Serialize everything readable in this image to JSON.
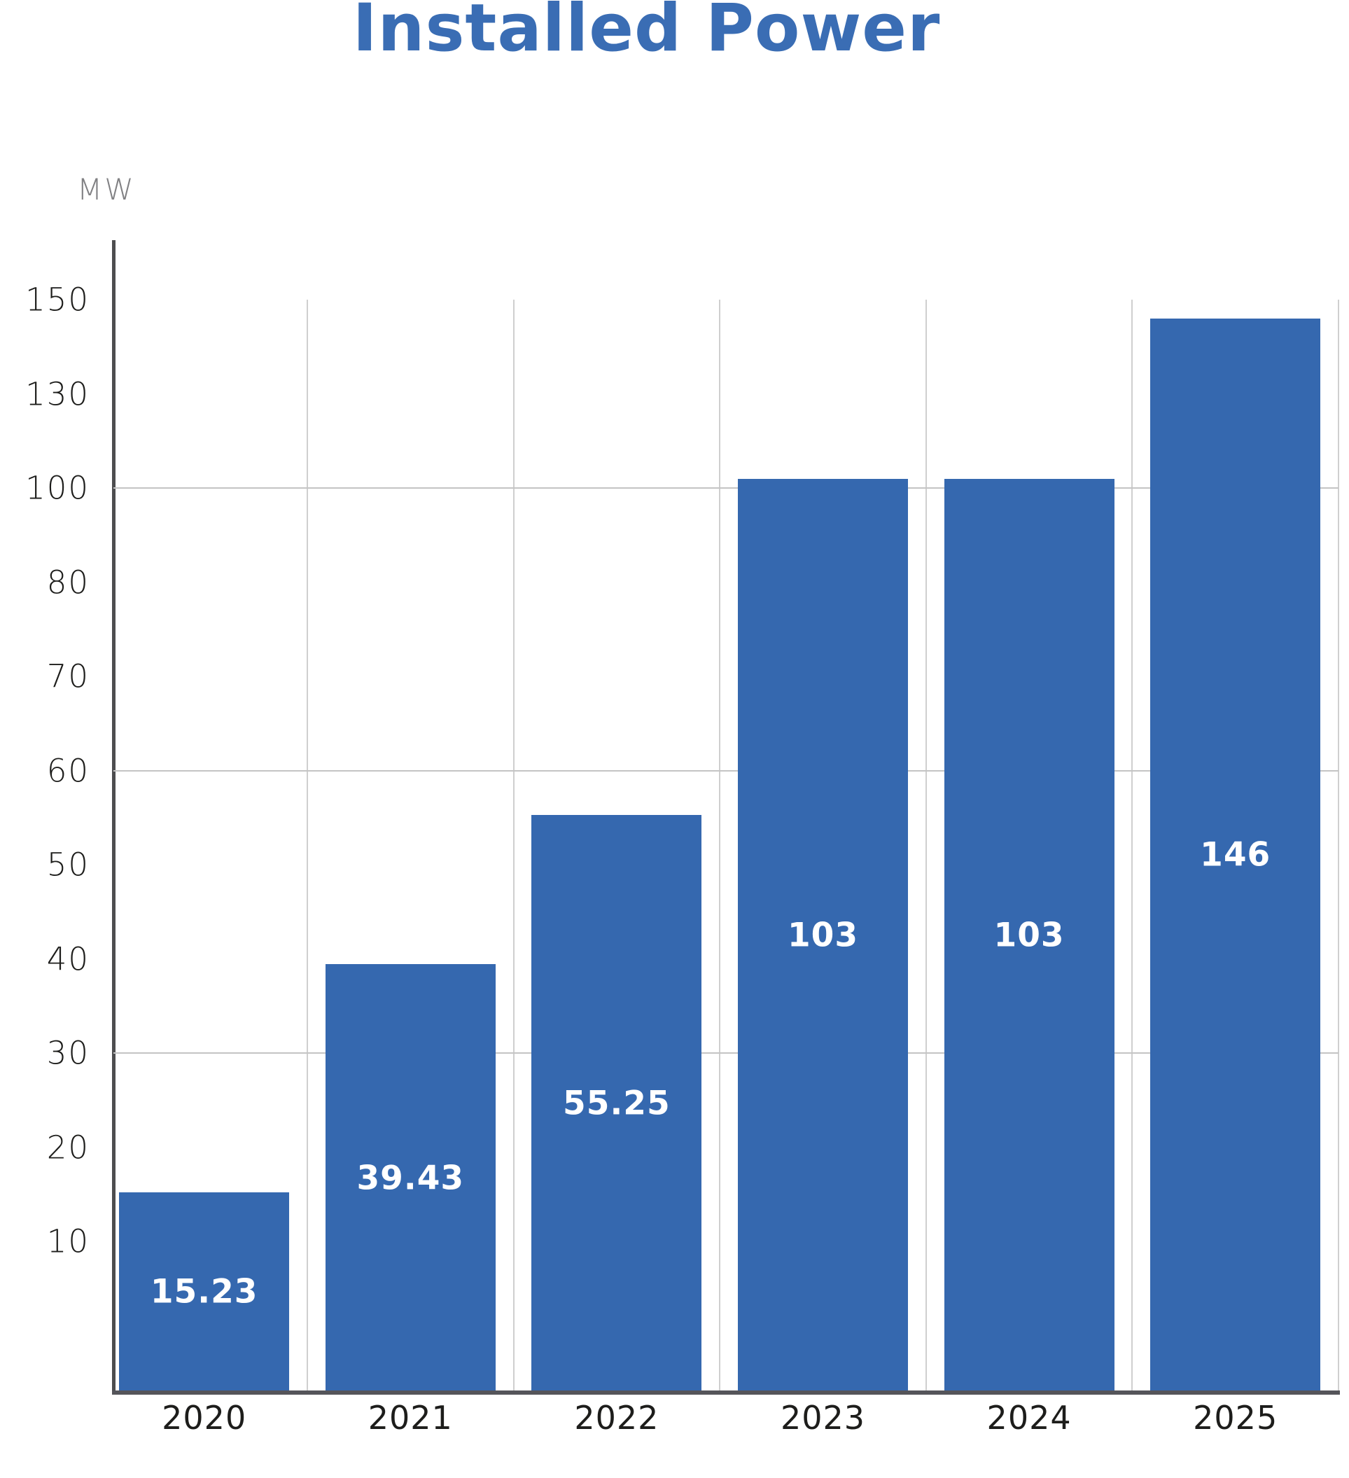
{
  "title": "Installed Power",
  "axis": {
    "unit_label": "MW",
    "tick_labels": [
      "150",
      "130",
      "100",
      "80",
      "70",
      "60",
      "50",
      "40",
      "30",
      "20",
      "10"
    ],
    "gridline_values": [
      100,
      60,
      30
    ]
  },
  "colors": {
    "bar": "#3568af",
    "title": "#3a6db4",
    "axis_line": "#4d4d4f",
    "gridline": "#c4c4c4",
    "bar_label_text": "#ffffff",
    "tick_text": "#1d1d1b",
    "unit_text": "#808083"
  },
  "chart_data": {
    "type": "bar",
    "title": "Installed Power",
    "ylabel": "MW",
    "xlabel": "",
    "categories": [
      "2020",
      "2021",
      "2022",
      "2023",
      "2024",
      "2025"
    ],
    "values": [
      15.23,
      39.43,
      55.25,
      103,
      103,
      146
    ],
    "bar_labels": [
      "15.23",
      "39.43",
      "55.25",
      "103",
      "103",
      "146"
    ],
    "yticks": [
      150,
      130,
      100,
      80,
      70,
      60,
      50,
      40,
      30,
      20,
      10
    ],
    "ytick_spacing": "equal-visual (non-linear value scale)",
    "ymin": 0,
    "grid": {
      "horizontal_at": [
        100,
        60,
        30
      ],
      "vertical_column_separators": true
    },
    "legend_position": "none",
    "bar_label_position": "centered-inside-bar"
  }
}
